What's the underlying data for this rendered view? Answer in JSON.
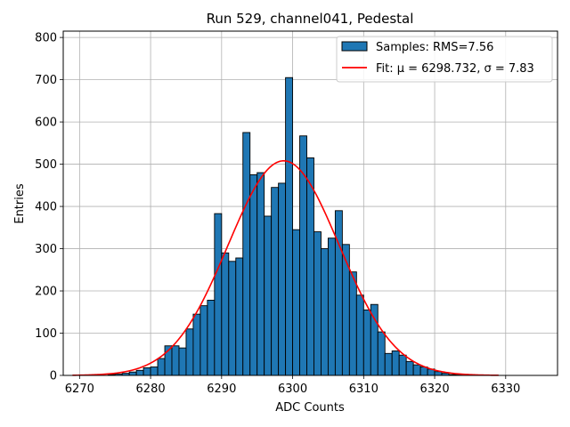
{
  "chart_data": {
    "type": "bar",
    "title": "Run 529, channel041, Pedestal",
    "xlabel": "ADC Counts",
    "ylabel": "Entries",
    "xlim": [
      6267.7,
      6337.3
    ],
    "ylim": [
      0,
      815
    ],
    "xticks": [
      6270,
      6280,
      6290,
      6300,
      6310,
      6320,
      6330
    ],
    "yticks": [
      0,
      100,
      200,
      300,
      400,
      500,
      600,
      700,
      800
    ],
    "grid": true,
    "legend_position": "top-right",
    "histogram": {
      "name": "Samples: RMS=7.56",
      "color": "#1f77b4",
      "edge_color": "#000000",
      "bin_width": 1,
      "bin_starts": [
        6274,
        6275,
        6276,
        6277,
        6278,
        6279,
        6280,
        6281,
        6282,
        6283,
        6284,
        6285,
        6286,
        6287,
        6288,
        6289,
        6290,
        6291,
        6292,
        6293,
        6294,
        6295,
        6296,
        6297,
        6298,
        6299,
        6300,
        6301,
        6302,
        6303,
        6304,
        6305,
        6306,
        6307,
        6308,
        6309,
        6310,
        6311,
        6312,
        6313,
        6314,
        6315,
        6316,
        6317,
        6318,
        6319,
        6320,
        6321,
        6322,
        6323
      ],
      "counts": [
        2,
        3,
        5,
        8,
        12,
        18,
        20,
        40,
        70,
        70,
        65,
        110,
        145,
        165,
        178,
        383,
        290,
        270,
        278,
        575,
        475,
        480,
        377,
        445,
        455,
        705,
        345,
        567,
        515,
        340,
        300,
        325,
        390,
        310,
        245,
        190,
        155,
        168,
        103,
        52,
        58,
        48,
        33,
        25,
        20,
        15,
        9,
        5,
        2,
        1
      ]
    },
    "fit": {
      "name": "Fit: μ = 6298.732, σ = 7.83",
      "color": "#ff0000",
      "mu": 6298.732,
      "sigma": 7.83,
      "amplitude": 508,
      "x_range": [
        6269,
        6329
      ]
    }
  }
}
